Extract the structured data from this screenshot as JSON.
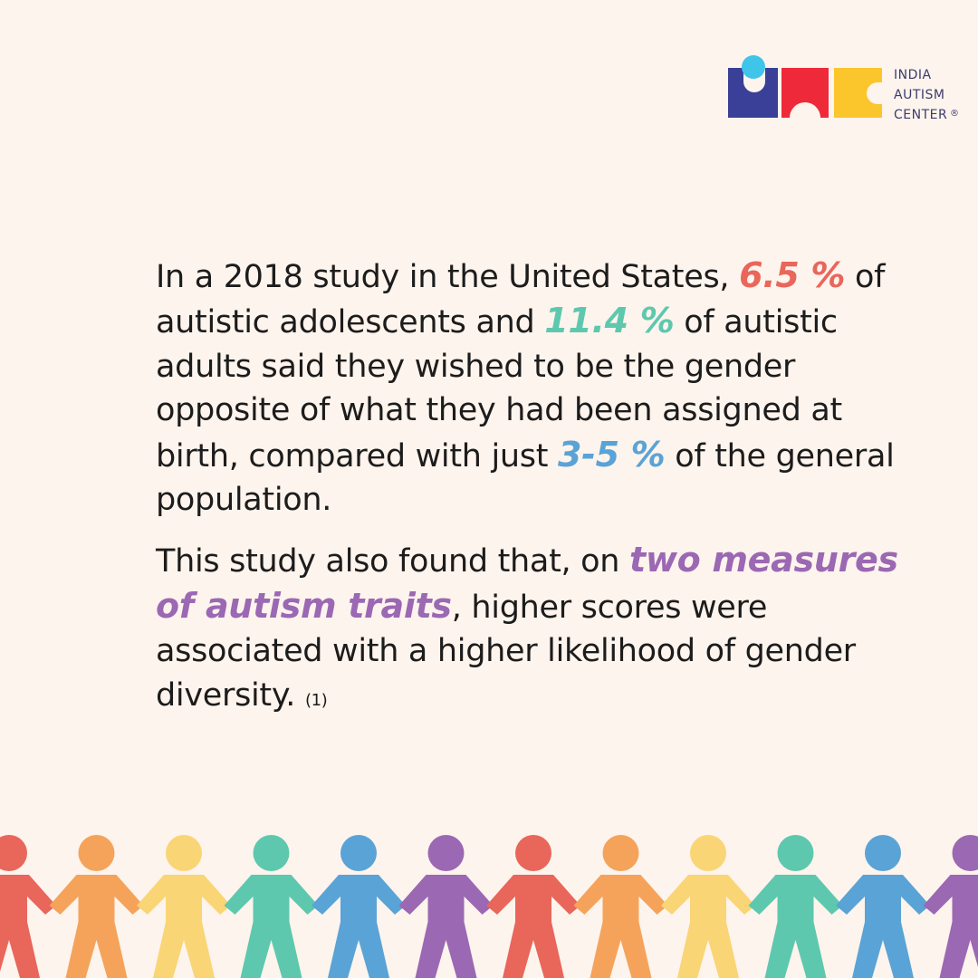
{
  "logo": {
    "lines": [
      "INDIA",
      "AUTISM",
      "CENTER"
    ],
    "registered": "®",
    "colors": {
      "navy": "#3a3f97",
      "cyan": "#3fc4ea",
      "red": "#ee2a3a",
      "yellow": "#fbc52c"
    }
  },
  "text": {
    "p1": {
      "before_1": "In a 2018 study in the United States, ",
      "stat_1": "6.5 %",
      "before_2": " of autistic adolescents and ",
      "stat_2": "11.4 %",
      "before_3": " of autistic adults said they wished to be the gender opposite of what they had been assigned at birth, compared with just ",
      "stat_3": "3-5 %",
      "after_3": " of the general population."
    },
    "p2": {
      "before": "This study also found that, on ",
      "highlight": "two measures of autism traits",
      "after": ", higher scores were associated with a higher likelihood of gender diversity. ",
      "citation": "(1)"
    }
  },
  "colors": {
    "background": "#fdf4ed",
    "body_text": "#1d1c1c",
    "highlight_red": "#e9665b",
    "highlight_teal": "#5ec8ae",
    "highlight_blue": "#5aa3d6",
    "highlight_purple": "#9b68b3"
  },
  "people_chain": {
    "colors": [
      "#e9665b",
      "#f5a35b",
      "#f9d576",
      "#5ec8ae",
      "#5aa3d6",
      "#9b68b3",
      "#e9665b",
      "#f5a35b",
      "#f9d576",
      "#5ec8ae",
      "#5aa3d6",
      "#9b68b3"
    ]
  }
}
